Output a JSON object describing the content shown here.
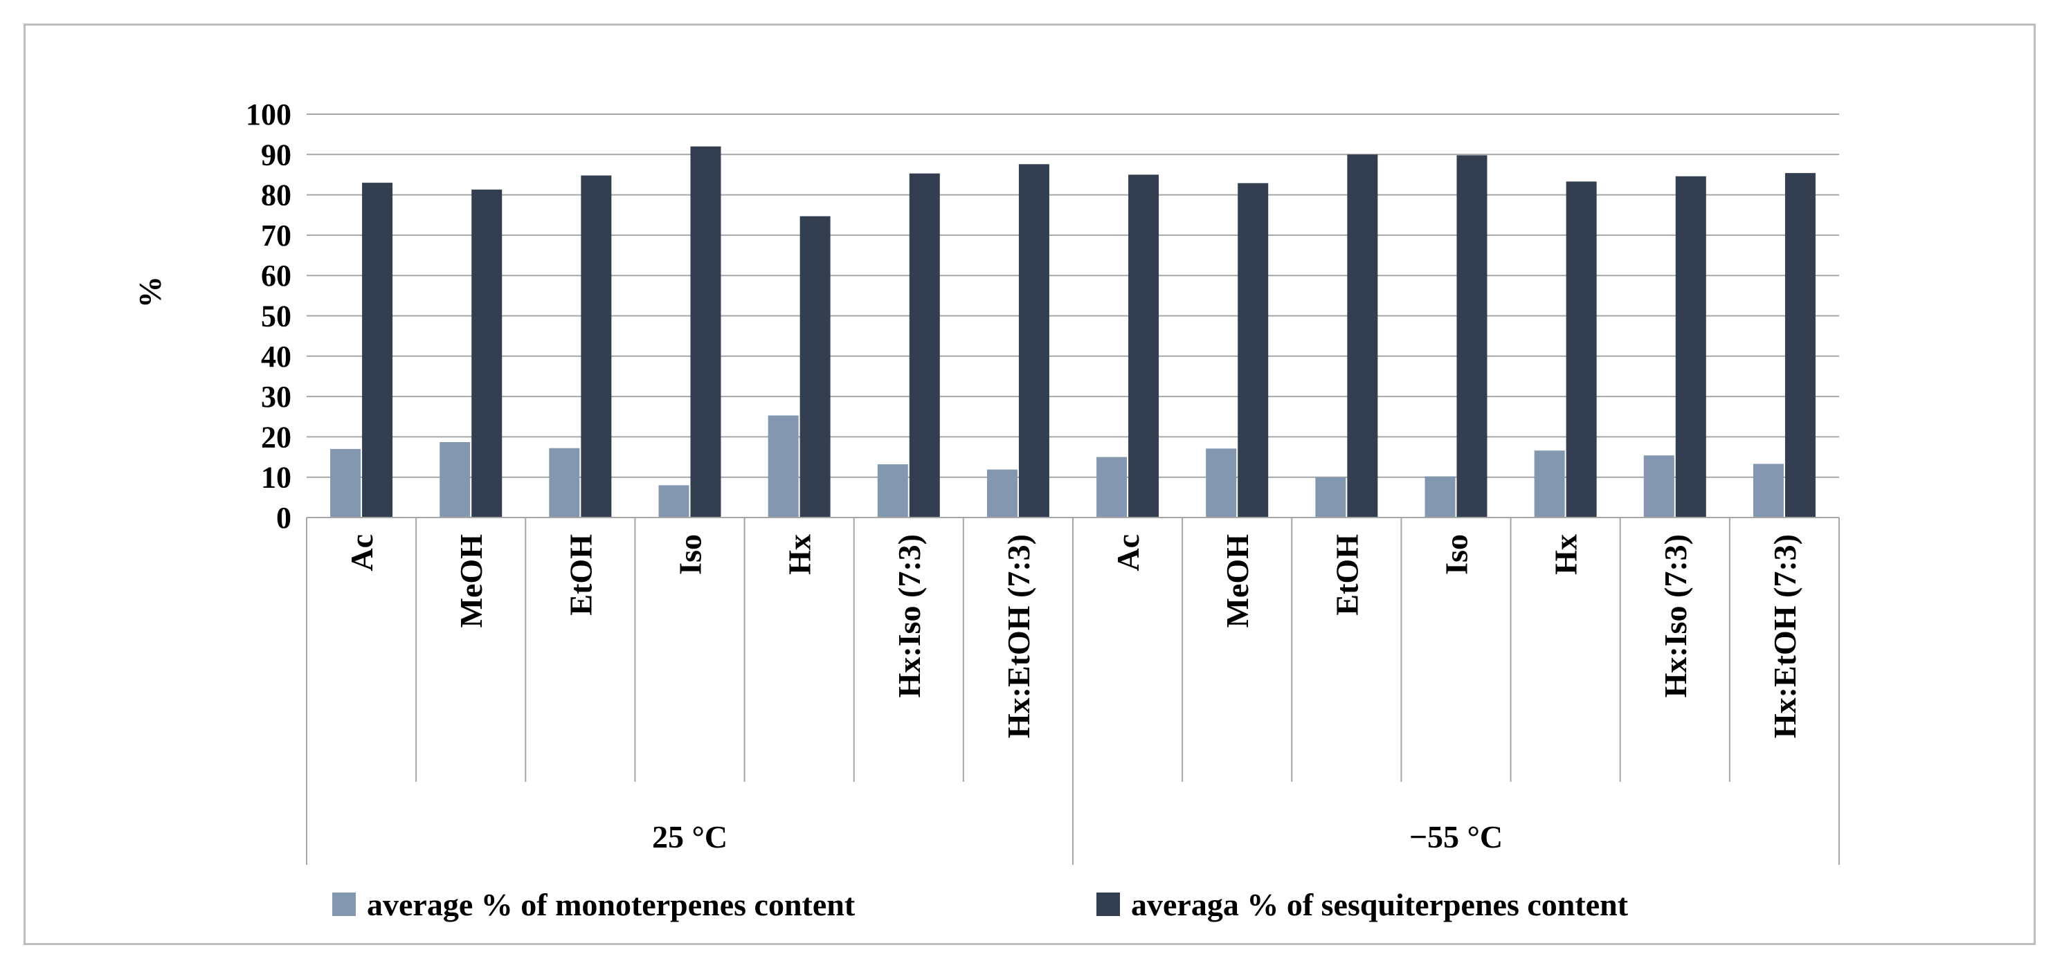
{
  "chart_data": {
    "type": "bar",
    "ylabel": "%",
    "ylim": [
      0,
      100
    ],
    "yticks": [
      0,
      10,
      20,
      30,
      40,
      50,
      60,
      70,
      80,
      90,
      100
    ],
    "grid": true,
    "legend_position": "bottom",
    "groups": [
      {
        "label": "25 °C",
        "categories": [
          "Ac",
          "MeOH",
          "EtOH",
          "Iso",
          "Hx",
          "Hx:Iso (7:3)",
          "Hx:EtOH (7:3)"
        ]
      },
      {
        "label": "−55 °C",
        "categories": [
          "Ac",
          "MeOH",
          "EtOH",
          "Iso",
          "Hx",
          "Hx:Iso (7:3)",
          "Hx:EtOH (7:3)"
        ]
      }
    ],
    "series": [
      {
        "name": "average % of monoterpenes content",
        "color": "#8497b0",
        "values": [
          17,
          18.7,
          17.2,
          8,
          25.3,
          13.2,
          11.9,
          15,
          17.1,
          10,
          10.2,
          16.6,
          15.4,
          13.3
        ]
      },
      {
        "name": "averaga % of sesquiterpenes content",
        "color": "#333f50",
        "values": [
          83,
          81.3,
          84.8,
          92,
          74.7,
          85.3,
          87.6,
          85,
          82.9,
          90,
          89.8,
          83.3,
          84.6,
          85.4
        ]
      }
    ]
  }
}
